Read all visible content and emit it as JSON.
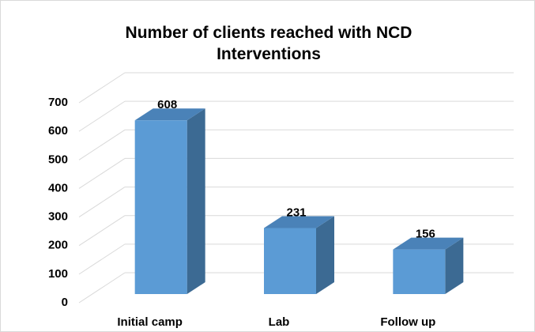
{
  "chart_data": {
    "type": "bar3d",
    "title": "Number of clients reached with NCD Interventions",
    "categories": [
      "Initial camp",
      "Lab",
      "Follow up"
    ],
    "values": [
      608,
      231,
      156
    ],
    "color": "#5b9bd5",
    "side_color": "#3c6a93",
    "top_color": "#4a82b8",
    "ylim": [
      0,
      700
    ],
    "yticks": [
      0,
      100,
      200,
      300,
      400,
      500,
      600,
      700
    ],
    "grid": true
  }
}
